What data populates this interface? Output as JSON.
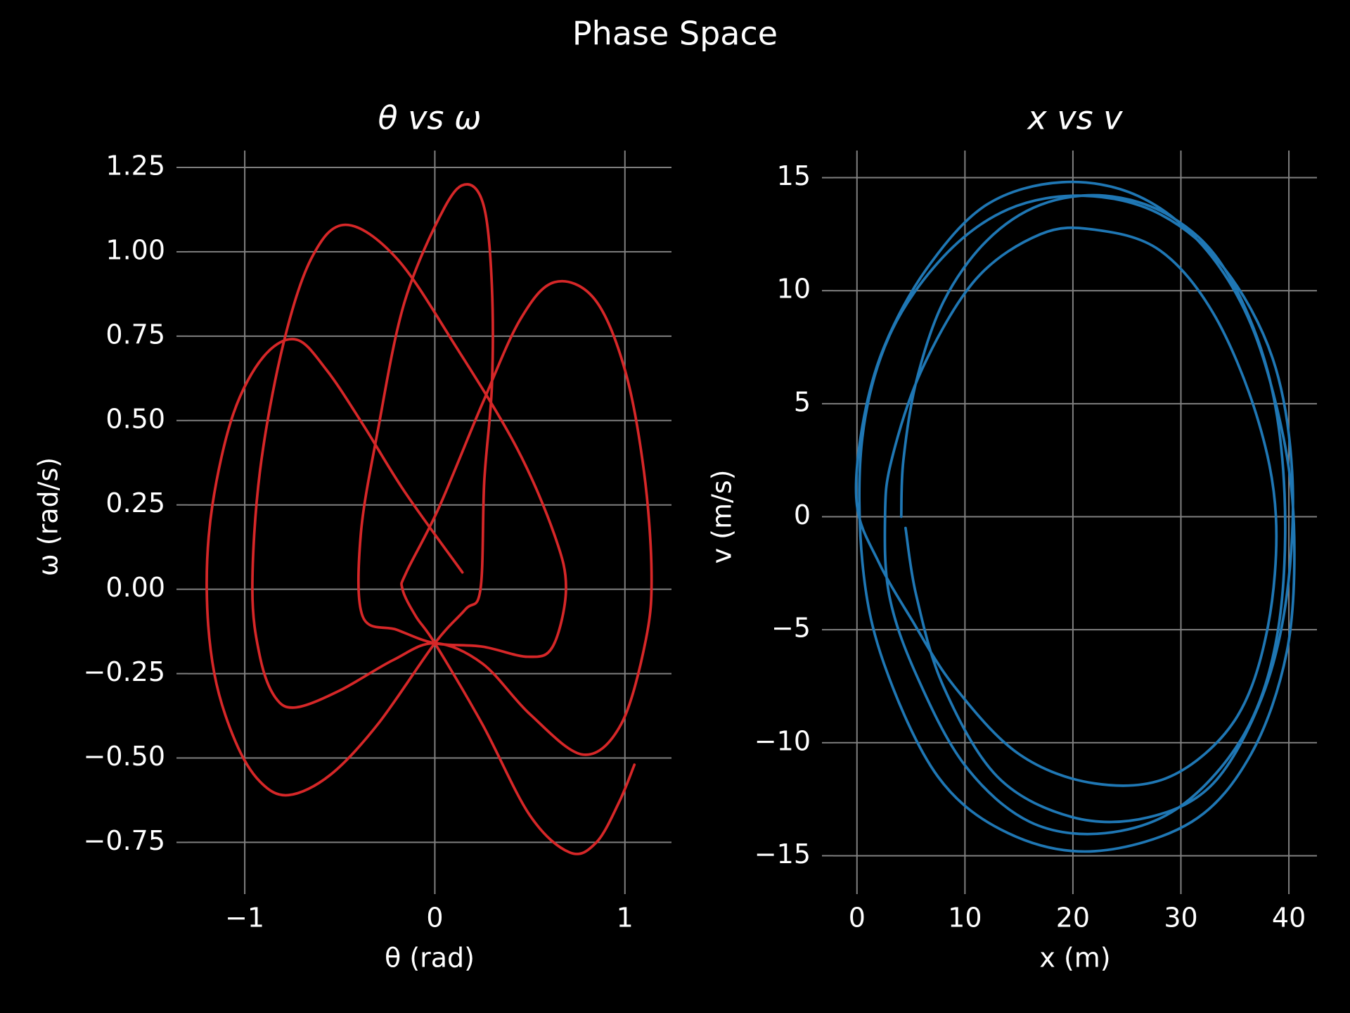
{
  "title": "Phase Space",
  "chart_data": [
    {
      "type": "line",
      "title": "θ vs ω",
      "xlabel": "θ (rad)",
      "ylabel": "ω (rad/s)",
      "xlim": [
        -1.3,
        1.245
      ],
      "ylim": [
        -0.87,
        1.3
      ],
      "xticks": [
        {
          "value": -1,
          "label": "−1"
        },
        0,
        1
      ],
      "yticks": [
        {
          "value": -0.75,
          "label": "−0.75"
        },
        {
          "value": -0.5,
          "label": "−0.50"
        },
        {
          "value": -0.25,
          "label": "−0.25"
        },
        {
          "value": 0,
          "label": "0.00"
        },
        0.25,
        {
          "value": 0.5,
          "label": "0.50"
        },
        0.75,
        {
          "value": 1,
          "label": "1.00"
        },
        1.25
      ],
      "grid": true,
      "x": [
        0.145,
        -0.16,
        -0.38,
        -0.57,
        -0.73,
        -0.9,
        -1.06,
        -1.17,
        -1.2,
        -1.16,
        -1.05,
        -0.92,
        -0.77,
        -0.55,
        -0.3,
        0,
        0.16,
        0.24,
        0.26,
        0.3,
        0.3,
        0.26,
        0.17,
        0.05,
        -0.16,
        -0.3,
        -0.39,
        -0.38,
        -0.2,
        0,
        0.25,
        0.49,
        0.62,
        0.69,
        0.63,
        0.43,
        0.11,
        -0.2,
        -0.47,
        -0.65,
        -0.8,
        -0.92,
        -0.96,
        -0.92,
        -0.84,
        -0.73,
        -0.5,
        -0.22,
        0,
        0.25,
        0.5,
        0.78,
        0.98,
        1.11,
        1.14,
        1.1,
        1.0,
        0.84,
        0.63,
        0.45,
        0.25,
        0.02,
        -0.15,
        -0.17,
        -0.1,
        0,
        0.25,
        0.5,
        0.71,
        0.85,
        0.97,
        1.05
      ],
      "series": [
        {
          "color": "#d62728",
          "values": [
            0.05,
            0.29,
            0.49,
            0.65,
            0.74,
            0.69,
            0.52,
            0.25,
            0.0,
            -0.25,
            -0.45,
            -0.57,
            -0.61,
            -0.55,
            -0.4,
            -0.16,
            -0.06,
            0.0,
            0.32,
            0.6,
            0.9,
            1.13,
            1.2,
            1.13,
            0.85,
            0.47,
            0.16,
            -0.08,
            -0.12,
            -0.16,
            -0.17,
            -0.2,
            -0.17,
            0.0,
            0.16,
            0.42,
            0.72,
            0.98,
            1.08,
            0.98,
            0.72,
            0.35,
            0.0,
            -0.2,
            -0.32,
            -0.35,
            -0.3,
            -0.21,
            -0.16,
            -0.22,
            -0.37,
            -0.49,
            -0.4,
            -0.15,
            0.05,
            0.35,
            0.65,
            0.86,
            0.91,
            0.8,
            0.55,
            0.24,
            0.05,
            0.0,
            -0.08,
            -0.16,
            -0.4,
            -0.67,
            -0.78,
            -0.75,
            -0.63,
            -0.52
          ]
        }
      ]
    },
    {
      "type": "line",
      "title": "x vs v",
      "xlabel": "x (m)",
      "ylabel": "v (m/s)",
      "xlim": [
        -2.2,
        42.6
      ],
      "ylim": [
        -16.2,
        16.2
      ],
      "xticks": [
        0,
        10,
        20,
        30,
        40
      ],
      "yticks": [
        {
          "value": -15,
          "label": "−15"
        },
        {
          "value": -10,
          "label": "−10"
        },
        {
          "value": -5,
          "label": "−5"
        },
        0,
        5,
        10,
        15
      ],
      "grid": true,
      "x": [
        4.1,
        4.3,
        5.5,
        8,
        12,
        17,
        23,
        29,
        34,
        38,
        39.6,
        39,
        36,
        30,
        23,
        16,
        10,
        5.5,
        3,
        2.6,
        3.2,
        6,
        11,
        17,
        22,
        28,
        33,
        37,
        38.8,
        38,
        35,
        29,
        22,
        15,
        9,
        5,
        2,
        0,
        0.5,
        2.5,
        6.5,
        12,
        19,
        26,
        32,
        36.5,
        39.5,
        40.5,
        39.8,
        36.5,
        31,
        22,
        14,
        7.5,
        2.5,
        0.5,
        0.5,
        3,
        8,
        14,
        21,
        28,
        34,
        38.5,
        40.3,
        39.8,
        37.5,
        33,
        27,
        20,
        13,
        8,
        5.5,
        4.5
      ],
      "series": [
        {
          "color": "#1f77b4",
          "values": [
            0.0,
            2.5,
            6,
            9.5,
            12.2,
            13.8,
            14.2,
            13.3,
            11,
            6.5,
            1,
            -5,
            -9.5,
            -12.8,
            -14,
            -13.5,
            -11,
            -7,
            -3.5,
            0,
            2.5,
            6.5,
            10.5,
            12.5,
            12.7,
            11.8,
            9,
            4.5,
            0,
            -5,
            -9,
            -11.5,
            -11.8,
            -10.5,
            -7.5,
            -4.5,
            -2,
            0.5,
            4,
            7.5,
            11,
            13.8,
            14.8,
            14.2,
            12,
            8.5,
            3.5,
            -1,
            -6,
            -10.5,
            -13.5,
            -14.8,
            -14,
            -11.5,
            -6.5,
            -2,
            3.5,
            8,
            11.5,
            13.6,
            14.2,
            13.4,
            11,
            7,
            2,
            -3.5,
            -8,
            -11.8,
            -13.3,
            -13.3,
            -11.5,
            -7.5,
            -3.5,
            -0.5
          ]
        }
      ]
    }
  ]
}
